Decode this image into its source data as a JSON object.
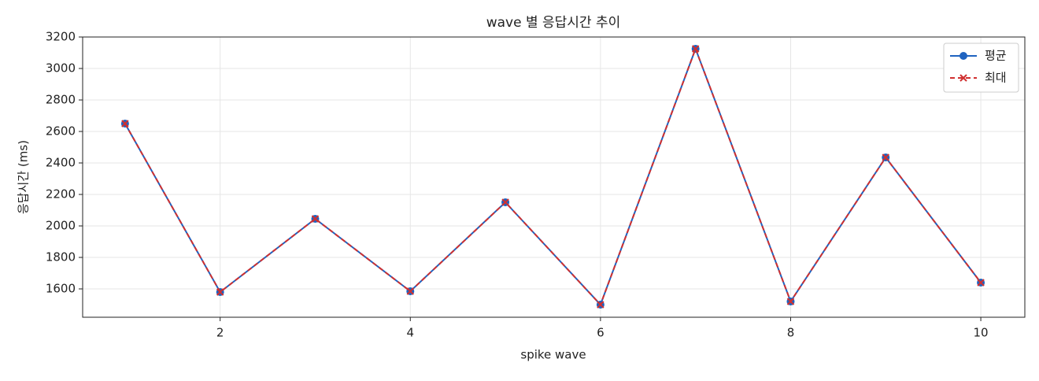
{
  "chart_data": {
    "type": "line",
    "title": "wave 별 응답시간 추이",
    "xlabel": "spike wave",
    "ylabel": "응답시간 (ms)",
    "x": [
      1,
      2,
      3,
      4,
      5,
      6,
      7,
      8,
      9,
      10
    ],
    "series": [
      {
        "name": "평균",
        "color": "#1f63c0",
        "marker": "o",
        "linestyle": "solid",
        "values": [
          2650,
          1580,
          2045,
          1585,
          2150,
          1500,
          3125,
          1520,
          2435,
          1640
        ]
      },
      {
        "name": "최대",
        "color": "#d03030",
        "marker": "x",
        "linestyle": "dashed",
        "values": [
          2650,
          1580,
          2045,
          1585,
          2150,
          1500,
          3125,
          1520,
          2435,
          1640
        ]
      }
    ],
    "xlim": [
      0.554,
      10.463
    ],
    "ylim": [
      1420,
      3200
    ],
    "xticks": [
      2,
      4,
      6,
      8,
      10
    ],
    "yticks": [
      1600,
      1800,
      2000,
      2200,
      2400,
      2600,
      2800,
      3000,
      3200
    ],
    "grid": true,
    "legend": "upper right"
  }
}
